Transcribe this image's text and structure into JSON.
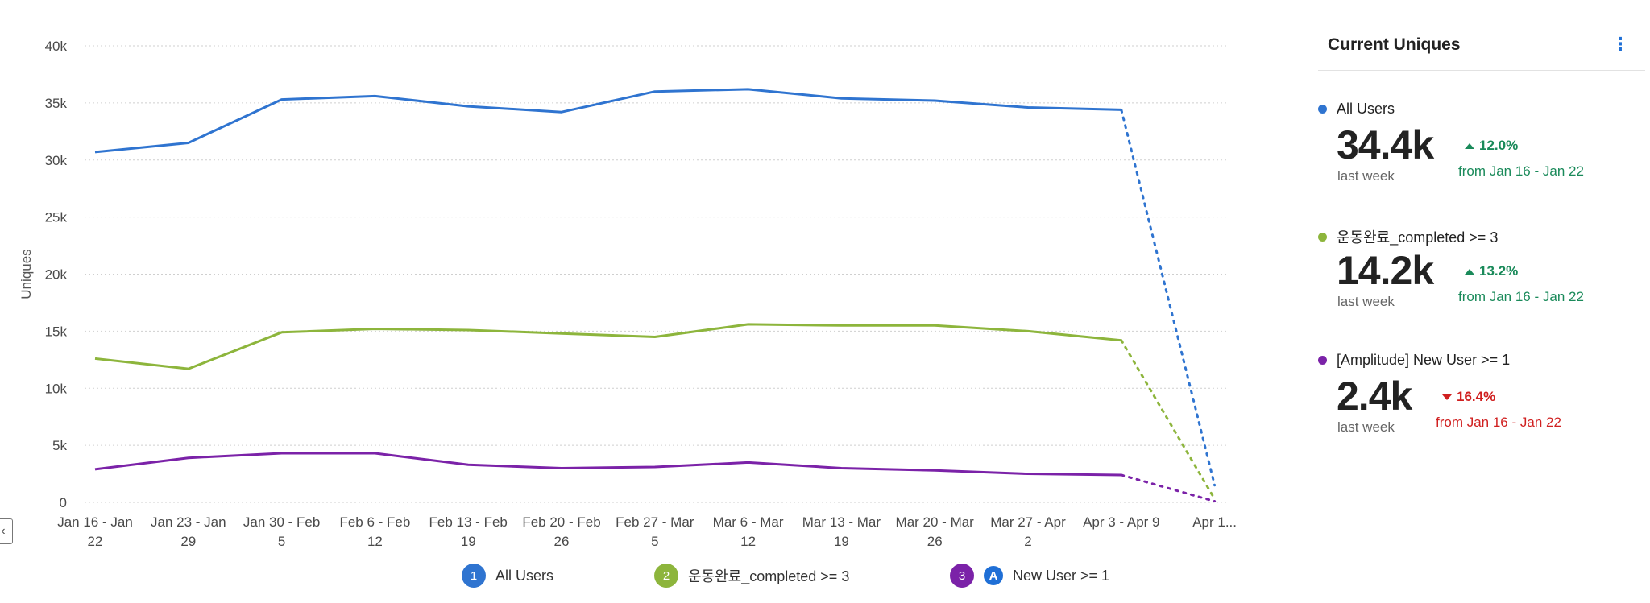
{
  "chart_data": {
    "type": "line",
    "title": "",
    "xlabel": "",
    "ylabel": "Uniques",
    "ylim": [
      0,
      40000
    ],
    "y_ticks": [
      {
        "value": 0,
        "label": "0"
      },
      {
        "value": 5000,
        "label": "5k"
      },
      {
        "value": 10000,
        "label": "10k"
      },
      {
        "value": 15000,
        "label": "15k"
      },
      {
        "value": 20000,
        "label": "20k"
      },
      {
        "value": 25000,
        "label": "25k"
      },
      {
        "value": 30000,
        "label": "30k"
      },
      {
        "value": 35000,
        "label": "35k"
      },
      {
        "value": 40000,
        "label": "40k"
      }
    ],
    "categories": [
      [
        "Jan 16 - Jan",
        "22"
      ],
      [
        "Jan 23 - Jan",
        "29"
      ],
      [
        "Jan 30 - Feb",
        "5"
      ],
      [
        "Feb 6 - Feb",
        "12"
      ],
      [
        "Feb 13 - Feb",
        "19"
      ],
      [
        "Feb 20 - Feb",
        "26"
      ],
      [
        "Feb 27 - Mar",
        "5"
      ],
      [
        "Mar 6 - Mar",
        "12"
      ],
      [
        "Mar 13 - Mar",
        "19"
      ],
      [
        "Mar 20 - Mar",
        "26"
      ],
      [
        "Mar 27 - Apr",
        "2"
      ],
      [
        "Apr 3 - Apr 9",
        ""
      ],
      [
        "Apr 1...",
        ""
      ]
    ],
    "incomplete_from_index": 11,
    "grid": true,
    "legend_position": "bottom",
    "series": [
      {
        "name": "All Users",
        "color": "#2f74d0",
        "values": [
          30700,
          31500,
          35300,
          35600,
          34700,
          34200,
          36000,
          36200,
          35400,
          35200,
          34600,
          34400,
          1500
        ]
      },
      {
        "name": "운동완료_completed >= 3",
        "color": "#8db53c",
        "values": [
          12600,
          11700,
          14900,
          15200,
          15100,
          14800,
          14500,
          15600,
          15500,
          15500,
          15000,
          14200,
          300
        ]
      },
      {
        "name": "New User >= 1",
        "color": "#7b22a8",
        "values": [
          2900,
          3900,
          4300,
          4300,
          3300,
          3000,
          3100,
          3500,
          3000,
          2800,
          2500,
          2400,
          100
        ]
      }
    ]
  },
  "legend": {
    "items": [
      {
        "badge": "1",
        "label": "All Users",
        "color": "#2f74d0"
      },
      {
        "badge": "2",
        "label": "운동완료_completed >= 3",
        "color": "#8db53c"
      },
      {
        "badge": "3",
        "label": "New User >= 1",
        "color": "#7b22a8",
        "icon": "amplitude-icon"
      }
    ]
  },
  "panel": {
    "title": "Current Uniques",
    "menu_icon": "more-vertical-icon",
    "metrics": [
      {
        "name": "All Users",
        "color": "#2f74d0",
        "value": "34.4k",
        "sub": "last week",
        "change": "12.0%",
        "direction": "up",
        "change_color": "#1a8a5a",
        "compare": "from Jan 16 - Jan 22"
      },
      {
        "name": "운동완료_completed >= 3",
        "color": "#8db53c",
        "value": "14.2k",
        "sub": "last week",
        "change": "13.2%",
        "direction": "up",
        "change_color": "#1a8a5a",
        "compare": "from Jan 16 - Jan 22"
      },
      {
        "name": "[Amplitude] New User >= 1",
        "color": "#7b22a8",
        "value": "2.4k",
        "sub": "last week",
        "change": "16.4%",
        "direction": "down",
        "change_color": "#d02020",
        "compare": "from Jan 16 - Jan 22"
      }
    ]
  }
}
